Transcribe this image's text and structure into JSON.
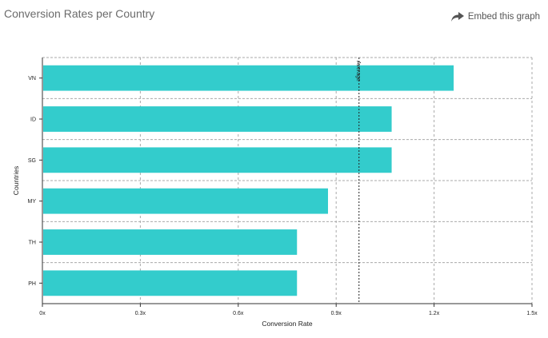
{
  "header": {
    "title": "Conversion Rates per Country",
    "embed_label": "Embed this graph",
    "embed_icon": "share-arrow-icon"
  },
  "chart_data": {
    "type": "bar",
    "orientation": "horizontal",
    "categories": [
      "VN",
      "ID",
      "SG",
      "MY",
      "TH",
      "PH"
    ],
    "values": [
      1.26,
      1.07,
      1.07,
      0.875,
      0.78,
      0.78
    ],
    "xlabel": "Conversion Rate",
    "ylabel": "Countries",
    "xlim": [
      0,
      1.5
    ],
    "xticks": [
      "0x",
      "0.3x",
      "0.6x",
      "0.9x",
      "1.2x",
      "1.5x"
    ],
    "xtick_values": [
      0,
      0.3,
      0.6,
      0.9,
      1.2,
      1.5
    ],
    "reference_line": {
      "label": "Average",
      "value": 0.97
    },
    "grid": true,
    "bar_color": "#33cccc"
  }
}
